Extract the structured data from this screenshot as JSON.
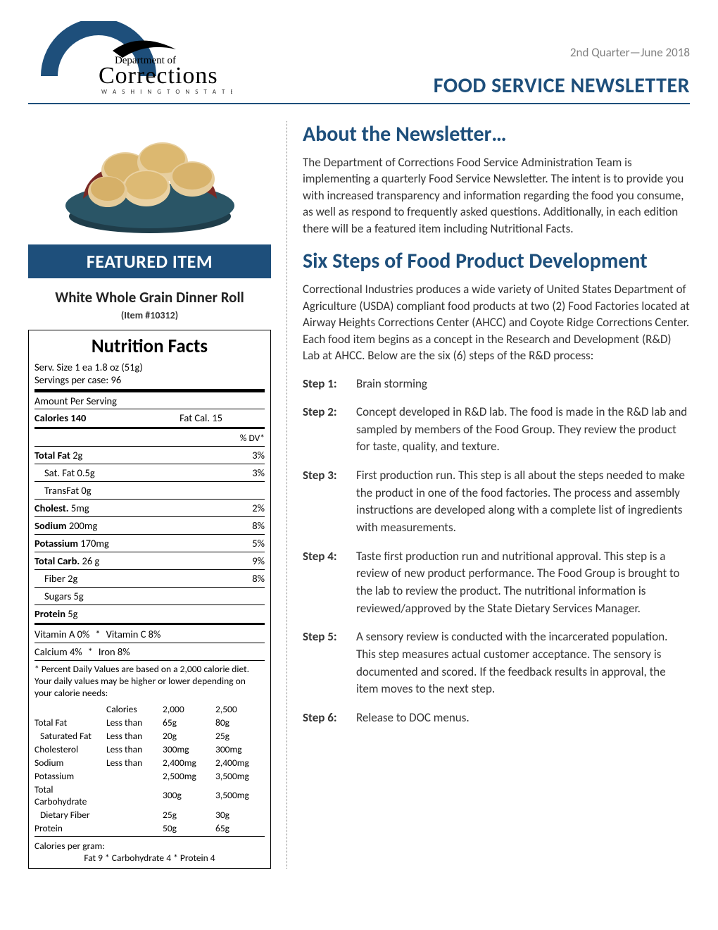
{
  "header": {
    "logo": {
      "dept_of": "Department of",
      "corrections": "Corrections",
      "state": "W A S H I N G T O N   S T A T E"
    },
    "issue_date": "2nd Quarter—June 2018",
    "title": "FOOD SERVICE NEWSLETTER",
    "accent_color": "#1e4f7b"
  },
  "featured": {
    "bar_label": "FEATURED ITEM",
    "name": "White Whole Grain Dinner Roll",
    "item_no": "(Item #10312)"
  },
  "nutrition": {
    "title": "Nutrition Facts",
    "serv_size": "Serv. Size 1 ea 1.8 oz (51g)",
    "serv_per_case": "Servings per case: 96",
    "amount_per_serving": "Amount Per Serving",
    "calories_label": "Calories  140",
    "fat_cal": "Fat Cal. 15",
    "dv_header": "% DV*",
    "rows": [
      {
        "label": "Total Fat",
        "val": "2g",
        "dv": "3%",
        "bold": true
      },
      {
        "label": "Sat. Fat",
        "val": "0.5g",
        "dv": "3%",
        "indent": true
      },
      {
        "label": "TransFat",
        "val": "0g",
        "dv": "",
        "indent": true
      },
      {
        "label": "Cholest.",
        "val": "5mg",
        "dv": "2%",
        "bold": true
      },
      {
        "label": "Sodium",
        "val": "200mg",
        "dv": "8%",
        "bold": true
      },
      {
        "label": "Potassium",
        "val": "170mg",
        "dv": "5%",
        "bold": true
      },
      {
        "label": "Total Carb.",
        "val": "26 g",
        "dv": "9%",
        "bold": true
      },
      {
        "label": "Fiber",
        "val": "2g",
        "dv": "8%",
        "indent": true
      },
      {
        "label": "Sugars",
        "val": "5g",
        "dv": "",
        "indent": true
      },
      {
        "label": "Protein",
        "val": "5g",
        "dv": "",
        "bold": true
      }
    ],
    "vitamins": [
      {
        "left": "Vitamin A 0%",
        "right": "Vitamin C 8%"
      },
      {
        "left": "Calcium 4%",
        "right": "Iron 8%"
      }
    ],
    "note": "* Percent Daily Values are based on a 2,000 calorie diet. Your daily values may be higher or lower depending on your calorie needs:",
    "ref": {
      "head": [
        "",
        "Calories",
        "2,000",
        "2,500"
      ],
      "rows": [
        [
          "Total Fat",
          "Less than",
          "65g",
          "80g"
        ],
        [
          "Saturated Fat",
          "Less than",
          "20g",
          "25g",
          true
        ],
        [
          "Cholesterol",
          "Less than",
          "300mg",
          "300mg"
        ],
        [
          "Sodium",
          "Less than",
          "2,400mg",
          "2,400mg"
        ],
        [
          "Potassium",
          "",
          "2,500mg",
          "3,500mg"
        ],
        [
          "Total Carbohydrate",
          "",
          "300g",
          "3,500mg"
        ],
        [
          "Dietary Fiber",
          "",
          "25g",
          "30g",
          true
        ],
        [
          "Protein",
          "",
          "50g",
          "65g"
        ]
      ]
    },
    "cpg_label": "Calories per gram:",
    "cpg_line": "Fat 9  *  Carbohydrate 4  *  Protein 4"
  },
  "about": {
    "title": "About the Newsletter…",
    "body": "The Department of Corrections Food Service Administration Team is implementing a quarterly Food Service Newsletter. The intent is to provide you with increased transparency and information regarding the food you consume, as well as respond to frequently asked questions. Additionally, in each edition there will be a featured item including Nutritional Facts."
  },
  "six_steps": {
    "title": "Six Steps of Food Product Development",
    "intro": "Correctional Industries produces a wide variety of United States Department of Agriculture (USDA) compliant food products at two (2) Food Factories located at Airway Heights Corrections Center (AHCC) and Coyote Ridge Corrections Center. Each food item begins as a concept in the Research and Development (R&D) Lab at AHCC. Below are the six (6) steps of the R&D process:",
    "steps": [
      {
        "label": "Step 1:",
        "text": "Brain storming"
      },
      {
        "label": "Step 2:",
        "text": "Concept developed in R&D lab. The food is made in the R&D lab and sampled by members of the Food Group. They review the product for taste, quality, and texture."
      },
      {
        "label": "Step 3:",
        "text": "First production run. This step is all about the steps needed to make the product in one of the food factories. The process and assembly instructions are developed along with a complete list of ingredients with measurements."
      },
      {
        "label": "Step 4:",
        "text": "Taste first production run and nutritional approval. This step is a review of new product performance. The Food Group is brought to the lab to review the product. The nutritional information is reviewed/approved by the State Dietary Services Manager."
      },
      {
        "label": "Step 5:",
        "text": "A sensory review is conducted with the incarcerated population. This step measures actual customer acceptance. The sensory is documented and scored. If the feedback results in approval, the item moves to the next step."
      },
      {
        "label": "Step 6:",
        "text": "Release to DOC menus."
      }
    ]
  }
}
